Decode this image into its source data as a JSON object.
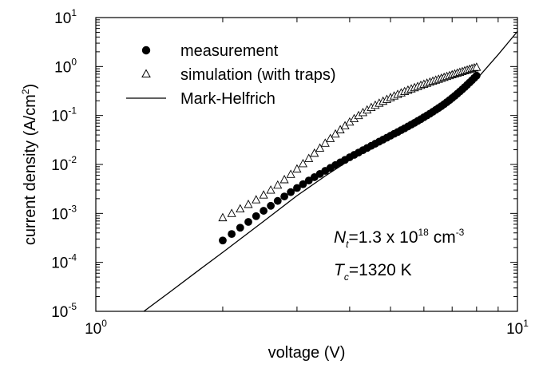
{
  "chart_data": {
    "type": "scatter",
    "xlabel": "voltage (V)",
    "ylabel": {
      "base": "current density (A/cm",
      "sup": "2",
      "tail": ")"
    },
    "x_scale": "log",
    "y_scale": "log",
    "xlim": [
      1,
      10
    ],
    "ylim": [
      1e-05,
      10
    ],
    "x_ticks": [
      {
        "value": 1,
        "base": "10",
        "exp": "0"
      },
      {
        "value": 10,
        "base": "10",
        "exp": "1"
      }
    ],
    "y_ticks": [
      {
        "value": 10,
        "base": "10",
        "exp": "1"
      },
      {
        "value": 1,
        "base": "10",
        "exp": "0"
      },
      {
        "value": 0.1,
        "base": "10",
        "exp": "-1"
      },
      {
        "value": 0.01,
        "base": "10",
        "exp": "-2"
      },
      {
        "value": 0.001,
        "base": "10",
        "exp": "-3"
      },
      {
        "value": 0.0001,
        "base": "10",
        "exp": "-4"
      },
      {
        "value": 1e-05,
        "base": "10",
        "exp": "-5"
      }
    ],
    "legend_position": "top-left",
    "series": [
      {
        "name": "measurement",
        "marker": "filled-circle",
        "x": [
          2.0,
          2.1,
          2.2,
          2.3,
          2.4,
          2.5,
          2.6,
          2.7,
          2.8,
          2.9,
          3.0,
          3.1,
          3.2,
          3.3,
          3.4,
          3.5,
          3.6,
          3.7,
          3.8,
          3.9,
          4.0,
          4.1,
          4.2,
          4.3,
          4.4,
          4.5,
          4.6,
          4.7,
          4.8,
          4.9,
          5.0,
          5.1,
          5.2,
          5.3,
          5.4,
          5.5,
          5.6,
          5.7,
          5.8,
          5.9,
          6.0,
          6.1,
          6.2,
          6.3,
          6.4,
          6.5,
          6.6,
          6.7,
          6.8,
          6.9,
          7.0,
          7.1,
          7.2,
          7.3,
          7.4,
          7.5,
          7.6,
          7.7,
          7.8,
          7.9,
          8.0
        ],
        "y": [
          0.00028,
          0.00038,
          0.00051,
          0.00067,
          0.00088,
          0.00113,
          0.00143,
          0.0018,
          0.00222,
          0.00272,
          0.0033,
          0.00395,
          0.0047,
          0.0055,
          0.0064,
          0.0074,
          0.0085,
          0.0097,
          0.011,
          0.0124,
          0.014,
          0.0157,
          0.0175,
          0.0195,
          0.0217,
          0.024,
          0.0265,
          0.0292,
          0.0321,
          0.0352,
          0.0386,
          0.0422,
          0.046,
          0.0502,
          0.0547,
          0.0596,
          0.065,
          0.0708,
          0.0772,
          0.084,
          0.092,
          0.1,
          0.109,
          0.119,
          0.13,
          0.142,
          0.155,
          0.17,
          0.187,
          0.206,
          0.227,
          0.251,
          0.278,
          0.308,
          0.342,
          0.38,
          0.423,
          0.471,
          0.525,
          0.585,
          0.65
        ]
      },
      {
        "name": "simulation (with traps)",
        "marker": "open-triangle",
        "x": [
          2.0,
          2.1,
          2.2,
          2.3,
          2.4,
          2.5,
          2.6,
          2.7,
          2.8,
          2.9,
          3.0,
          3.1,
          3.2,
          3.3,
          3.4,
          3.5,
          3.6,
          3.7,
          3.8,
          3.9,
          4.0,
          4.1,
          4.2,
          4.3,
          4.4,
          4.5,
          4.6,
          4.7,
          4.8,
          4.9,
          5.0,
          5.1,
          5.2,
          5.3,
          5.4,
          5.5,
          5.6,
          5.7,
          5.8,
          5.9,
          6.0,
          6.1,
          6.2,
          6.3,
          6.4,
          6.5,
          6.6,
          6.7,
          6.8,
          6.9,
          7.0,
          7.1,
          7.2,
          7.3,
          7.4,
          7.5,
          7.6,
          7.7,
          7.8,
          7.9,
          8.0
        ],
        "y": [
          0.00082,
          0.001,
          0.00124,
          0.00153,
          0.0019,
          0.00238,
          0.003,
          0.0038,
          0.0049,
          0.0063,
          0.0081,
          0.0104,
          0.0133,
          0.017,
          0.0216,
          0.0272,
          0.034,
          0.042,
          0.0512,
          0.0618,
          0.0736,
          0.0865,
          0.1,
          0.115,
          0.13,
          0.146,
          0.162,
          0.179,
          0.196,
          0.214,
          0.232,
          0.251,
          0.27,
          0.29,
          0.31,
          0.33,
          0.35,
          0.371,
          0.392,
          0.414,
          0.436,
          0.458,
          0.481,
          0.504,
          0.528,
          0.552,
          0.577,
          0.602,
          0.628,
          0.654,
          0.68,
          0.707,
          0.735,
          0.763,
          0.792,
          0.821,
          0.85,
          0.88,
          0.91,
          0.94,
          0.97
        ]
      },
      {
        "name": "Mark-Helfrich",
        "marker": "line",
        "x": [
          1.3,
          1.5,
          1.75,
          2.0,
          2.5,
          3.0,
          3.5,
          4.0,
          5.0,
          6.0,
          7.0,
          8.0,
          9.0,
          10.0
        ],
        "y": [
          1e-05,
          2.5e-05,
          6.8e-05,
          0.00016,
          0.00069,
          0.0023,
          0.0058,
          0.0123,
          0.0402,
          0.1,
          0.21,
          0.55,
          1.75,
          5.2
        ]
      }
    ],
    "annotations": [
      {
        "sym": "N",
        "sub": "t",
        "text": "=1.3 x 10",
        "sup": "18",
        "text2": " cm",
        "sup2": "-3"
      },
      {
        "sym": "T",
        "sub": "c",
        "text": "=1320 K",
        "sup": "",
        "text2": "",
        "sup2": ""
      }
    ]
  }
}
